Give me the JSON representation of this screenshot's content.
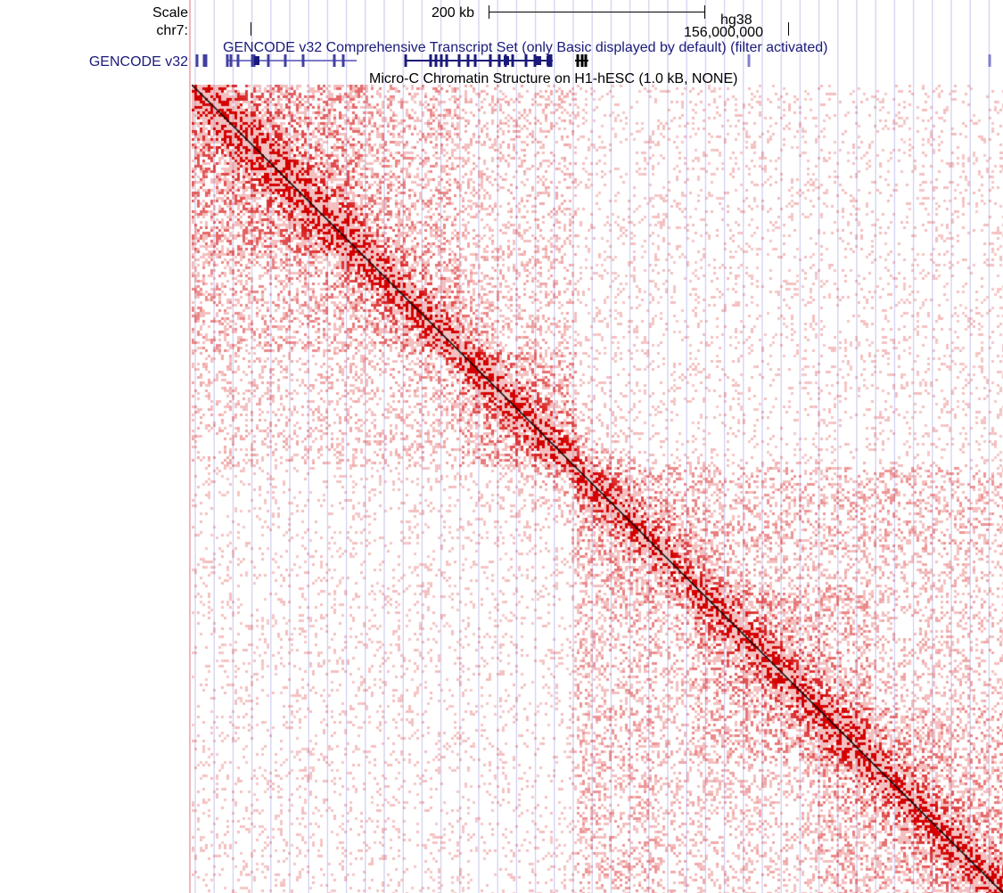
{
  "ruler": {
    "scale_label": "Scale",
    "scale_bar_label": "200 kb",
    "assembly": "hg38",
    "chrom_label": "chr7:",
    "position_label": "156,000,000"
  },
  "tracks": [
    {
      "side_label": "GENCODE v32",
      "title": "GENCODE v32 Comprehensive Transcript Set (only Basic displayed by default) (filter activated)",
      "color": "#1a1a7a"
    },
    {
      "title": "Micro-C Chromatin Structure on H1-hESC (1.0 kB, NONE)",
      "color": "#000000"
    }
  ],
  "colors": {
    "heatmap": "#d40000",
    "grid": "#d8d8f4",
    "diagonal": "#000000"
  }
}
